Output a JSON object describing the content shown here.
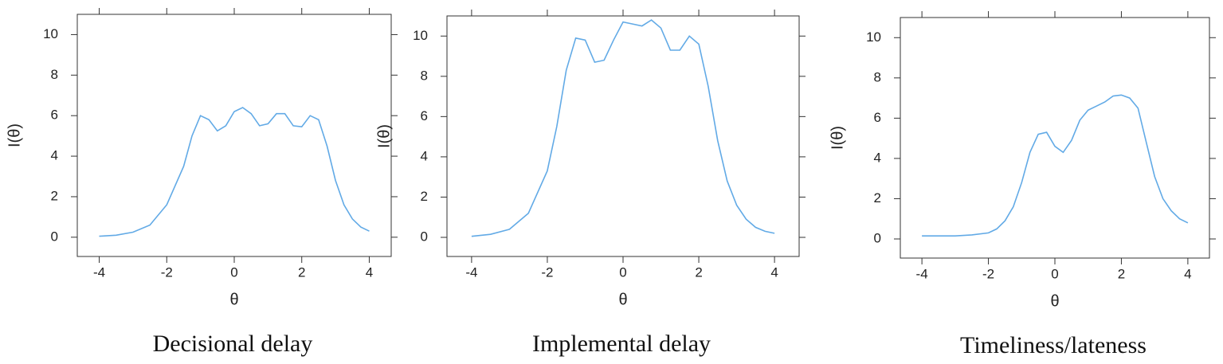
{
  "chart_data": [
    {
      "type": "line",
      "title": "Decisional delay",
      "xlabel": "θ",
      "ylabel": "I(θ)",
      "color": "#62aae6",
      "xlim": [
        -4.65,
        4.65
      ],
      "ylim": [
        -0.95,
        11.0
      ],
      "xticks": [
        -4,
        -2,
        0,
        2,
        4
      ],
      "yticks": [
        0,
        2,
        4,
        6,
        8,
        10
      ],
      "x": [
        -4,
        -3.5,
        -3,
        -2.5,
        -2,
        -1.5,
        -1.25,
        -1,
        -0.75,
        -0.5,
        -0.25,
        0,
        0.25,
        0.5,
        0.75,
        1,
        1.25,
        1.5,
        1.75,
        2,
        2.25,
        2.5,
        2.75,
        3,
        3.25,
        3.5,
        3.75,
        4
      ],
      "values": [
        0.05,
        0.1,
        0.25,
        0.6,
        1.6,
        3.5,
        5.0,
        6.0,
        5.8,
        5.25,
        5.5,
        6.2,
        6.4,
        6.1,
        5.5,
        5.6,
        6.1,
        6.1,
        5.5,
        5.45,
        6.0,
        5.8,
        4.5,
        2.8,
        1.6,
        0.9,
        0.5,
        0.3
      ]
    },
    {
      "type": "line",
      "title": "Implemental delay",
      "xlabel": "θ",
      "ylabel": "I(θ)",
      "color": "#62aae6",
      "xlim": [
        -4.65,
        4.65
      ],
      "ylim": [
        -0.95,
        11.0
      ],
      "xticks": [
        -4,
        -2,
        0,
        2,
        4
      ],
      "yticks": [
        0,
        2,
        4,
        6,
        8,
        10
      ],
      "x": [
        -4,
        -3.5,
        -3,
        -2.5,
        -2,
        -1.75,
        -1.5,
        -1.25,
        -1,
        -0.75,
        -0.5,
        -0.25,
        0,
        0.25,
        0.5,
        0.75,
        1,
        1.25,
        1.5,
        1.75,
        2,
        2.25,
        2.5,
        2.75,
        3,
        3.25,
        3.5,
        3.75,
        4
      ],
      "values": [
        0.05,
        0.15,
        0.4,
        1.2,
        3.3,
        5.5,
        8.3,
        9.9,
        9.8,
        8.7,
        8.8,
        9.8,
        10.7,
        10.6,
        10.5,
        10.8,
        10.4,
        9.3,
        9.3,
        10.0,
        9.6,
        7.5,
        4.8,
        2.8,
        1.6,
        0.9,
        0.5,
        0.3,
        0.2
      ]
    },
    {
      "type": "line",
      "title": "Timeliness/lateness",
      "xlabel": "θ",
      "ylabel": "I(θ)",
      "color": "#62aae6",
      "xlim": [
        -4.65,
        4.65
      ],
      "ylim": [
        -0.95,
        11.0
      ],
      "xticks": [
        -4,
        -2,
        0,
        2,
        4
      ],
      "yticks": [
        0,
        2,
        4,
        6,
        8,
        10
      ],
      "x": [
        -4,
        -3.5,
        -3,
        -2.5,
        -2,
        -1.75,
        -1.5,
        -1.25,
        -1,
        -0.75,
        -0.5,
        -0.25,
        0,
        0.25,
        0.5,
        0.75,
        1,
        1.25,
        1.5,
        1.75,
        2,
        2.25,
        2.5,
        2.75,
        3,
        3.25,
        3.5,
        3.75,
        4
      ],
      "values": [
        0.15,
        0.15,
        0.15,
        0.2,
        0.3,
        0.5,
        0.9,
        1.6,
        2.8,
        4.3,
        5.2,
        5.3,
        4.6,
        4.3,
        4.9,
        5.9,
        6.4,
        6.6,
        6.8,
        7.1,
        7.15,
        7.0,
        6.5,
        4.8,
        3.1,
        2.0,
        1.4,
        1.0,
        0.8
      ]
    }
  ]
}
